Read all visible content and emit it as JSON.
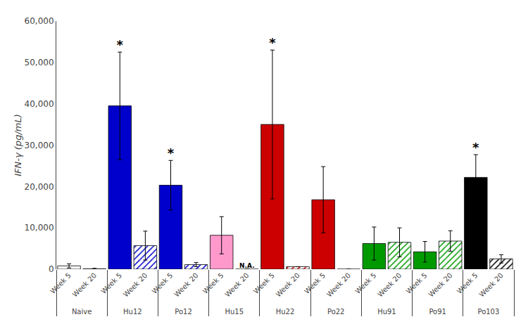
{
  "chart_data": {
    "type": "bar",
    "categories": [
      "Naive",
      "Hu12",
      "Po12",
      "Hu15",
      "Hu22",
      "Po22",
      "Hu91",
      "Po91",
      "Po103"
    ],
    "series": [
      {
        "name": "Week 5",
        "values": [
          800,
          39500,
          20300,
          8200,
          35000,
          16800,
          6200,
          4200,
          22200
        ],
        "errors": [
          500,
          13000,
          6000,
          4500,
          18000,
          8000,
          4000,
          2500,
          5500
        ],
        "colors": [
          "white",
          "#0000cc",
          "#0000cc",
          "#ff99cc",
          "#cc0000",
          "#cc0000",
          "#009900",
          "#009900",
          "#000000"
        ]
      },
      {
        "name": "Week 20",
        "values": [
          100,
          5700,
          1100,
          0,
          600,
          0,
          6500,
          6800,
          2500
        ],
        "errors": [
          100,
          3500,
          500,
          0,
          0,
          0,
          3500,
          2500,
          1000
        ],
        "colors": [
          "white",
          "#0000cc",
          "#0000cc",
          "#ff99cc",
          "#cc0000",
          "#cc0000",
          "#009900",
          "#009900",
          "#000000"
        ]
      }
    ],
    "ylabel": "IFN-γ (pg/mL)",
    "ylim": [
      0,
      60000
    ],
    "yticks": [
      0,
      {
        "value": 10000,
        "label": "10,000"
      },
      {
        "value": 20000,
        "label": "20,000"
      },
      {
        "value": 30000,
        "label": "30,000"
      },
      {
        "value": 40000,
        "label": "40,000"
      },
      {
        "value": 50000,
        "label": "50,000"
      },
      {
        "value": 60000,
        "label": "60,000"
      }
    ],
    "grid": false,
    "annotations": [
      {
        "text": "*",
        "category": "Hu12",
        "series": "Week 5"
      },
      {
        "text": "*",
        "category": "Po12",
        "series": "Week 5"
      },
      {
        "text": "*",
        "category": "Hu22",
        "series": "Week 5"
      },
      {
        "text": "*",
        "category": "Po103",
        "series": "Week 5"
      },
      {
        "text": "N.A.",
        "category": "Hu15",
        "series": "Week 20"
      }
    ]
  }
}
